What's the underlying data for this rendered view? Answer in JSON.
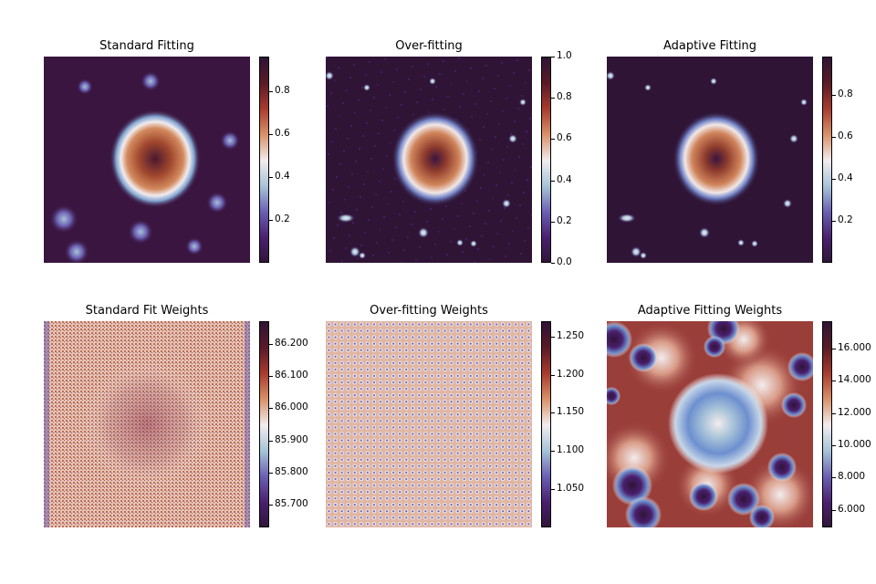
{
  "colors": {
    "colormap": [
      "#2f1436",
      "#4a1f6e",
      "#6a5fb1",
      "#a7c3d8",
      "#f2ecee",
      "#d8926b",
      "#a83c2f",
      "#5a1a27",
      "#2f1436"
    ]
  },
  "chart_data": [
    {
      "type": "heatmap",
      "title": "Standard Fitting",
      "colorbar_ticks": [
        "0.2",
        "0.4",
        "0.6",
        "0.8"
      ],
      "colorbar_values": [
        0.2,
        0.4,
        0.6,
        0.8
      ],
      "vmin": 0.0,
      "vmax": 0.96,
      "pattern": "smooth-blob"
    },
    {
      "type": "heatmap",
      "title": "Over-fitting",
      "colorbar_ticks": [
        "0.0",
        "0.2",
        "0.4",
        "0.6",
        "0.8",
        "1.0"
      ],
      "colorbar_values": [
        0.0,
        0.2,
        0.4,
        0.6,
        0.8,
        1.0
      ],
      "vmin": 0.0,
      "vmax": 1.0,
      "pattern": "detailed-galaxy"
    },
    {
      "type": "heatmap",
      "title": "Adaptive Fitting",
      "colorbar_ticks": [
        "0.2",
        "0.4",
        "0.6",
        "0.8"
      ],
      "colorbar_values": [
        0.2,
        0.4,
        0.6,
        0.8
      ],
      "vmin": 0.0,
      "vmax": 0.98,
      "pattern": "detailed-galaxy"
    },
    {
      "type": "heatmap",
      "title": "Standard Fit Weights",
      "colorbar_ticks": [
        "85.700",
        "85.800",
        "85.900",
        "86.000",
        "86.100",
        "86.200"
      ],
      "colorbar_values": [
        85.7,
        85.8,
        85.9,
        86.0,
        86.1,
        86.2
      ],
      "vmin": 85.63,
      "vmax": 86.27,
      "pattern": "fine-grid"
    },
    {
      "type": "heatmap",
      "title": "Over-fitting Weights",
      "colorbar_ticks": [
        "1.050",
        "1.100",
        "1.150",
        "1.200",
        "1.250"
      ],
      "colorbar_values": [
        1.05,
        1.1,
        1.15,
        1.2,
        1.25
      ],
      "vmin": 1.0,
      "vmax": 1.27,
      "pattern": "dotted-grid"
    },
    {
      "type": "heatmap",
      "title": "Adaptive Fitting Weights",
      "colorbar_ticks": [
        "6.000",
        "8.000",
        "10.000",
        "12.000",
        "14.000",
        "16.000"
      ],
      "colorbar_values": [
        6.0,
        8.0,
        10.0,
        12.0,
        14.0,
        16.0
      ],
      "vmin": 4.9,
      "vmax": 17.7,
      "pattern": "smooth-weights"
    }
  ]
}
